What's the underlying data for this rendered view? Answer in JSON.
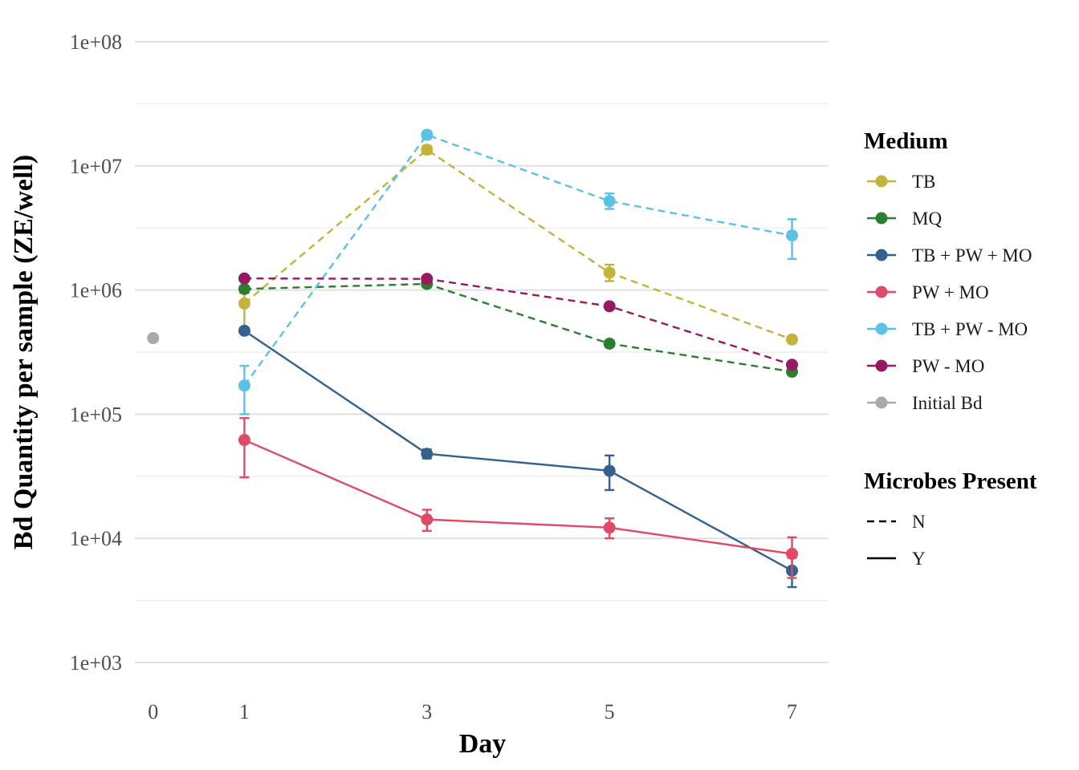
{
  "chart_data": {
    "type": "line",
    "xlabel": "Day",
    "ylabel": "Bd Quantity per sample (ZE/well)",
    "x_ticks": [
      0,
      1,
      3,
      5,
      7
    ],
    "x_tick_labels": [
      "0",
      "1",
      "3",
      "5",
      "7"
    ],
    "xlim": [
      -0.2,
      7.4
    ],
    "y_scale": "log10",
    "ylim": [
      1000,
      100000000
    ],
    "y_ticks": [
      1000,
      10000,
      100000,
      1000000,
      10000000,
      100000000
    ],
    "y_tick_labels": [
      "1e+03",
      "1e+04",
      "1e+05",
      "1e+06",
      "1e+07",
      "1e+08"
    ],
    "grid": true,
    "legend_placement": "right",
    "legends": [
      {
        "title": "Medium",
        "entries": [
          {
            "label": "TB",
            "color": "#c4b23c"
          },
          {
            "label": "MQ",
            "color": "#2a7f2f"
          },
          {
            "label": "TB + PW + MO",
            "color": "#34618f"
          },
          {
            "label": "PW + MO",
            "color": "#e04a66"
          },
          {
            "label": "TB + PW - MO",
            "color": "#5bc1e5"
          },
          {
            "label": "PW - MO",
            "color": "#961a61"
          },
          {
            "label": "Initial Bd",
            "color": "#a9a9a9"
          }
        ]
      },
      {
        "title": "Microbes Present",
        "entries": [
          {
            "label": "N",
            "dash": "dashed"
          },
          {
            "label": "Y",
            "dash": "solid"
          }
        ]
      }
    ],
    "series": [
      {
        "name": "TB",
        "color": "#c4b23c",
        "dash": "dashed",
        "x": [
          1,
          3,
          5,
          7
        ],
        "y": [
          780000,
          13500000,
          1380000,
          400000
        ],
        "y_low": [
          500000,
          12500000,
          1180000,
          380000
        ],
        "y_high": [
          1050000,
          14500000,
          1600000,
          420000
        ]
      },
      {
        "name": "MQ",
        "color": "#2a7f2f",
        "dash": "dashed",
        "x": [
          1,
          3,
          5,
          7
        ],
        "y": [
          1020000,
          1120000,
          370000,
          220000
        ],
        "y_low": [
          950000,
          1050000,
          350000,
          210000
        ],
        "y_high": [
          1080000,
          1180000,
          390000,
          230000
        ]
      },
      {
        "name": "TB + PW + MO",
        "color": "#34618f",
        "dash": "solid",
        "x": [
          1,
          3,
          5,
          7
        ],
        "y": [
          470000,
          48000,
          35000,
          5500
        ],
        "y_low": [
          450000,
          44000,
          24500,
          4050
        ],
        "y_high": [
          490000,
          52000,
          46500,
          7000
        ]
      },
      {
        "name": "PW + MO",
        "color": "#e04a66",
        "dash": "solid",
        "x": [
          1,
          3,
          5,
          7
        ],
        "y": [
          62000,
          14200,
          12200,
          7500
        ],
        "y_low": [
          31000,
          11500,
          10000,
          4800
        ],
        "y_high": [
          93000,
          17000,
          14500,
          10200
        ]
      },
      {
        "name": "TB + PW - MO",
        "color": "#5bc1e5",
        "dash": "dashed",
        "x": [
          1,
          3,
          5,
          7
        ],
        "y": [
          170000,
          17800000,
          5200000,
          2750000
        ],
        "y_low": [
          100000,
          16500000,
          4500000,
          1780000
        ],
        "y_high": [
          245000,
          19000000,
          6000000,
          3720000
        ]
      },
      {
        "name": "PW - MO",
        "color": "#961a61",
        "dash": "dashed",
        "x": [
          1,
          3,
          5,
          7
        ],
        "y": [
          1240000,
          1230000,
          740000,
          250000
        ],
        "y_low": [
          1200000,
          1190000,
          710000,
          240000
        ],
        "y_high": [
          1280000,
          1270000,
          770000,
          260000
        ]
      },
      {
        "name": "Initial Bd",
        "color": "#a9a9a9",
        "dash": "none",
        "x": [
          0
        ],
        "y": [
          410000
        ]
      }
    ]
  }
}
